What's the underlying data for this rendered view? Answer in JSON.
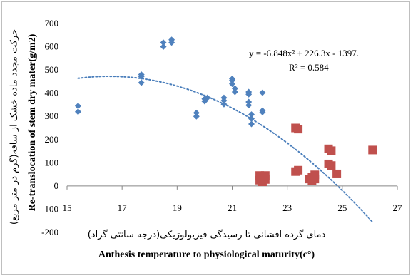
{
  "chart_data": {
    "type": "scatter",
    "xlabel_fa": "دمای گرده افشانی تا رسیدگی فیزیولوژیکی(درجه سانتی گراد)",
    "xlabel_en": "Anthesis temperature to physiological maturity(c°)",
    "ylabel_fa": "حرکت مجدد ماده خشک از ساقه(گرم در متر مربع)",
    "ylabel_en": "Re-translocation of stem dry mater(g/m2)",
    "xlim": [
      15,
      27
    ],
    "ylim": [
      -200,
      700
    ],
    "xticks": [
      15,
      17,
      19,
      21,
      23,
      25,
      27
    ],
    "yticks": [
      -200,
      -100,
      0,
      100,
      200,
      300,
      400,
      500,
      600,
      700
    ],
    "grid": false,
    "equation_text": "y = -6.848x² + 226.3x - 1397.",
    "r2_text": "R² = 0.584",
    "trendline": {
      "a": -6.848,
      "b": 226.3,
      "c": -1397,
      "x_range": [
        15.4,
        26.1
      ],
      "color": "#4a7ebb",
      "style": "dotted"
    },
    "series": [
      {
        "marker": "diamond",
        "color": "#4f81bd",
        "points": [
          [
            15.4,
            345
          ],
          [
            15.4,
            320
          ],
          [
            17.7,
            480
          ],
          [
            17.7,
            472
          ],
          [
            17.7,
            445
          ],
          [
            18.5,
            618
          ],
          [
            18.5,
            600
          ],
          [
            18.8,
            630
          ],
          [
            18.8,
            618
          ],
          [
            19.7,
            315
          ],
          [
            19.7,
            300
          ],
          [
            20.0,
            375
          ],
          [
            20.1,
            380
          ],
          [
            20.0,
            365
          ],
          [
            20.7,
            380
          ],
          [
            20.7,
            368
          ],
          [
            20.7,
            352
          ],
          [
            21.0,
            462
          ],
          [
            21.0,
            455
          ],
          [
            21.0,
            440
          ],
          [
            21.1,
            420
          ],
          [
            21.1,
            405
          ],
          [
            21.6,
            405
          ],
          [
            21.6,
            395
          ],
          [
            21.6,
            362
          ],
          [
            21.6,
            348
          ],
          [
            21.7,
            308
          ],
          [
            21.7,
            290
          ],
          [
            21.7,
            267
          ],
          [
            22.1,
            402
          ],
          [
            22.1,
            325
          ],
          [
            22.1,
            318
          ]
        ]
      },
      {
        "marker": "square",
        "color": "#c0504d",
        "points": [
          [
            22.0,
            45
          ],
          [
            22.1,
            40
          ],
          [
            22.2,
            45
          ],
          [
            22.0,
            25
          ],
          [
            22.1,
            18
          ],
          [
            22.2,
            28
          ],
          [
            23.3,
            250
          ],
          [
            23.4,
            245
          ],
          [
            23.3,
            62
          ],
          [
            23.4,
            68
          ],
          [
            23.8,
            30
          ],
          [
            23.9,
            38
          ],
          [
            24.0,
            48
          ],
          [
            23.9,
            22
          ],
          [
            24.0,
            30
          ],
          [
            24.5,
            160
          ],
          [
            24.6,
            152
          ],
          [
            24.5,
            95
          ],
          [
            24.6,
            88
          ],
          [
            24.8,
            52
          ],
          [
            26.1,
            155
          ]
        ]
      }
    ]
  }
}
